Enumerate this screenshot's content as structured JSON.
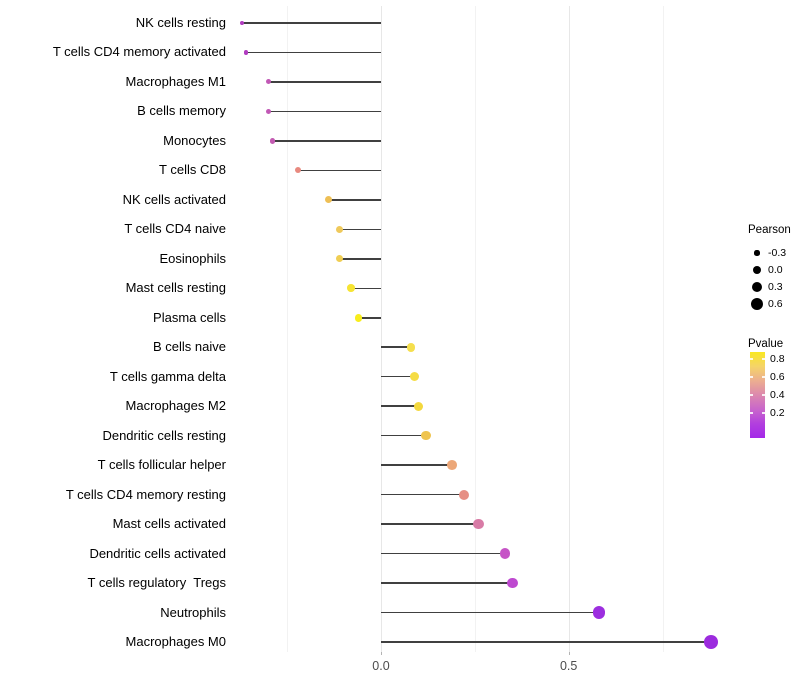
{
  "chart_data": {
    "type": "scatter",
    "subtype": "lollipop",
    "orientation": "horizontal",
    "title": "",
    "xlabel": "",
    "ylabel": "",
    "xlim": [
      -0.383,
      0.9
    ],
    "grid": "vertical-only",
    "x_major_gridlines": [
      0.0,
      0.5
    ],
    "x_minor_gridlines": [
      -0.25,
      0.25,
      0.75
    ],
    "x_ticks": [
      {
        "value": 0.0,
        "label": "0.0"
      },
      {
        "value": 0.5,
        "label": "0.5"
      }
    ],
    "categories": [
      "NK cells resting",
      "T cells CD4 memory activated",
      "Macrophages M1",
      "B cells memory",
      "Monocytes",
      "T cells CD8",
      "NK cells activated",
      "T cells CD4 naive",
      "Eosinophils",
      "Mast cells resting",
      "Plasma cells",
      "B cells naive",
      "T cells gamma delta",
      "Macrophages M2",
      "Dendritic cells resting",
      "T cells follicular helper",
      "T cells CD4 memory resting",
      "Mast cells activated",
      "Dendritic cells activated",
      "T cells regulatory  Tregs",
      "Neutrophils",
      "Macrophages M0"
    ],
    "points": [
      {
        "label": "NK cells resting",
        "pearson": -0.37,
        "pvalue": 0.13,
        "color": "#b13cc0"
      },
      {
        "label": "T cells CD4 memory activated",
        "pearson": -0.36,
        "pvalue": 0.13,
        "color": "#b13cc0"
      },
      {
        "label": "Macrophages M1",
        "pearson": -0.3,
        "pvalue": 0.24,
        "color": "#c158b5"
      },
      {
        "label": "B cells memory",
        "pearson": -0.3,
        "pvalue": 0.24,
        "color": "#c158b5"
      },
      {
        "label": "Monocytes",
        "pearson": -0.29,
        "pvalue": 0.25,
        "color": "#c35bb2"
      },
      {
        "label": "T cells CD8",
        "pearson": -0.22,
        "pvalue": 0.45,
        "color": "#e8897f"
      },
      {
        "label": "NK cells activated",
        "pearson": -0.14,
        "pvalue": 0.62,
        "color": "#eebf55"
      },
      {
        "label": "T cells CD4 naive",
        "pearson": -0.11,
        "pvalue": 0.65,
        "color": "#efc95b"
      },
      {
        "label": "Eosinophils",
        "pearson": -0.11,
        "pvalue": 0.67,
        "color": "#f0ce53"
      },
      {
        "label": "Mast cells resting",
        "pearson": -0.08,
        "pvalue": 0.78,
        "color": "#f6e433"
      },
      {
        "label": "Plasma cells",
        "pearson": -0.06,
        "pvalue": 0.84,
        "color": "#f8ed1c"
      },
      {
        "label": "B cells naive",
        "pearson": 0.08,
        "pvalue": 0.72,
        "color": "#f5df4d"
      },
      {
        "label": "T cells gamma delta",
        "pearson": 0.09,
        "pvalue": 0.71,
        "color": "#f5dc45"
      },
      {
        "label": "Macrophages M2",
        "pearson": 0.1,
        "pvalue": 0.7,
        "color": "#f3d83e"
      },
      {
        "label": "Dendritic cells resting",
        "pearson": 0.12,
        "pvalue": 0.63,
        "color": "#efc44f"
      },
      {
        "label": "T cells follicular helper",
        "pearson": 0.19,
        "pvalue": 0.52,
        "color": "#eca778"
      },
      {
        "label": "T cells CD4 memory resting",
        "pearson": 0.22,
        "pvalue": 0.46,
        "color": "#e68f84"
      },
      {
        "label": "Mast cells activated",
        "pearson": 0.26,
        "pvalue": 0.36,
        "color": "#d87ba6"
      },
      {
        "label": "Dendritic cells activated",
        "pearson": 0.33,
        "pvalue": 0.2,
        "color": "#c654c6"
      },
      {
        "label": "T cells regulatory  Tregs",
        "pearson": 0.35,
        "pvalue": 0.16,
        "color": "#be49d0"
      },
      {
        "label": "Neutrophils",
        "pearson": 0.58,
        "pvalue": 0.05,
        "color": "#9c2edf"
      },
      {
        "label": "Macrophages M0",
        "pearson": 0.88,
        "pvalue": 0.04,
        "color": "#9c2bde"
      }
    ],
    "legend": {
      "position": "right",
      "size_legend": {
        "title": "Pearson",
        "items": [
          {
            "label": "-0.3",
            "value": -0.3
          },
          {
            "label": "0.0",
            "value": 0.0
          },
          {
            "label": "0.3",
            "value": 0.3
          },
          {
            "label": "0.6",
            "value": 0.6
          }
        ],
        "dot_color": "#000000"
      },
      "color_legend": {
        "title": "Pvalue",
        "tick_labels": [
          "0.8",
          "0.6",
          "0.4",
          "0.2"
        ],
        "tick_values": [
          0.8,
          0.6,
          0.4,
          0.2
        ],
        "gradient_top_to_bottom": [
          "#f9e821",
          "#f5d468",
          "#ecae90",
          "#dc88ae",
          "#c966cb",
          "#b23fde",
          "#a428e8"
        ]
      }
    },
    "stem_color": "#404040"
  }
}
